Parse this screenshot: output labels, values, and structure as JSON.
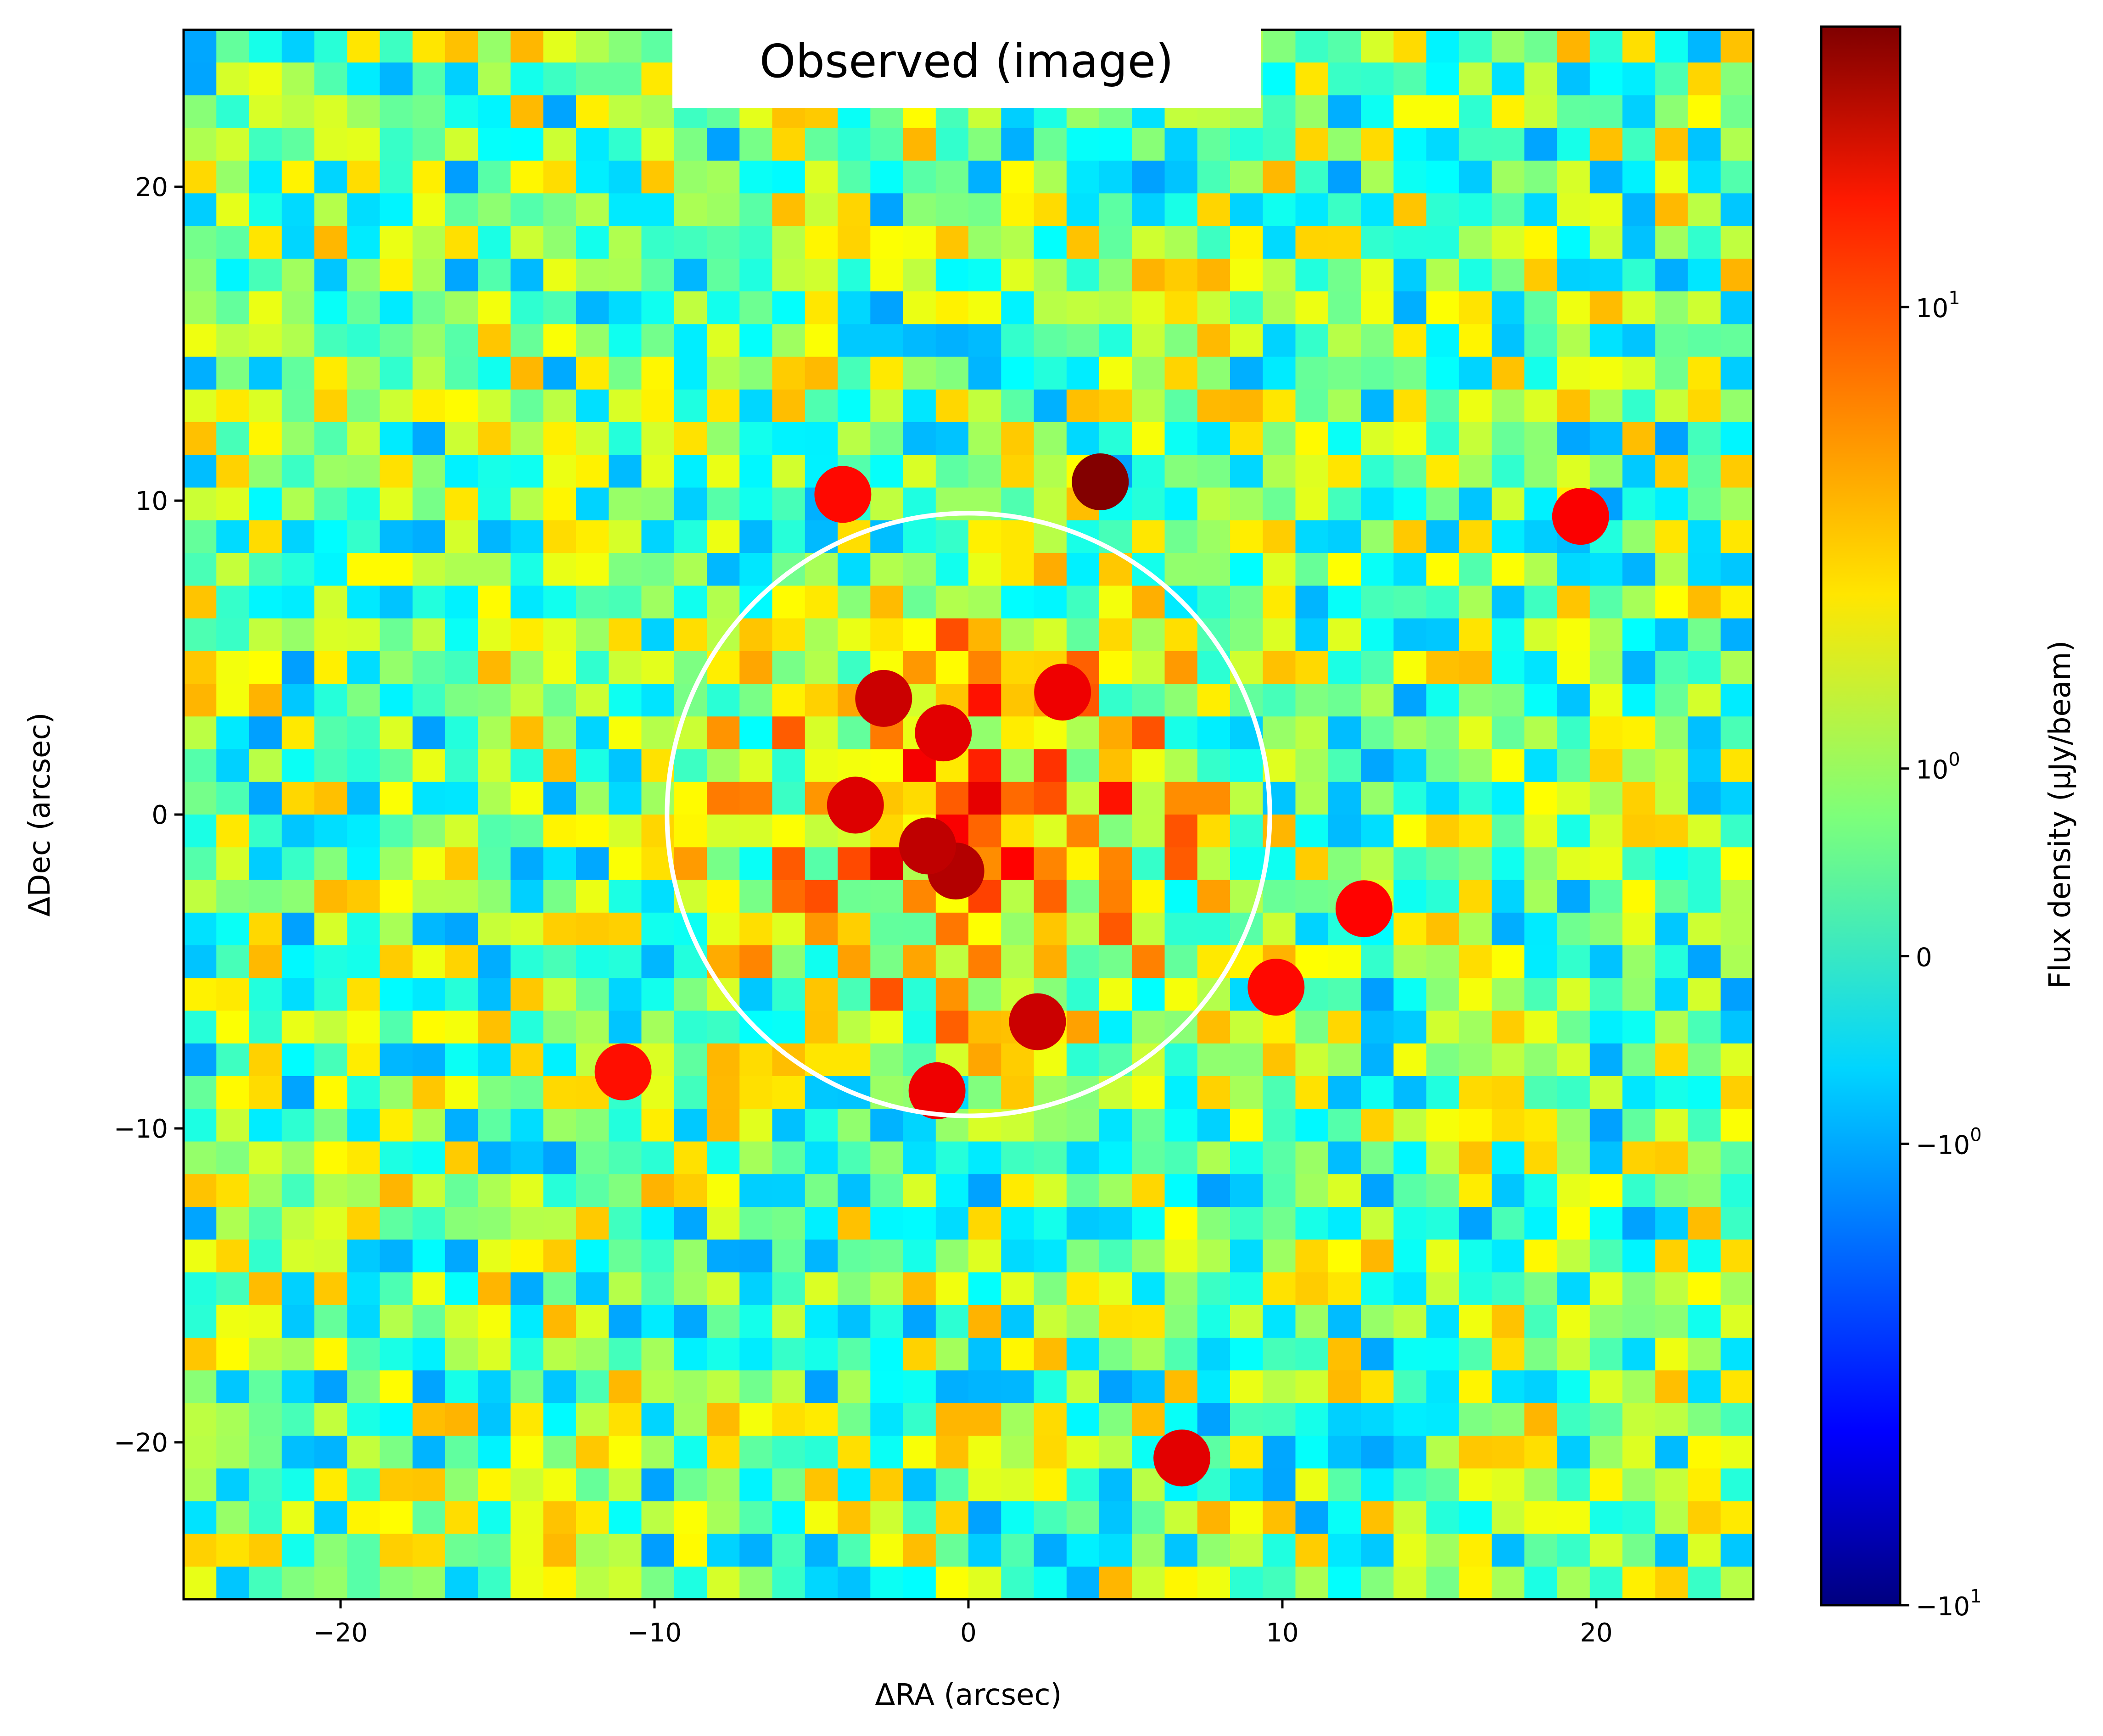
{
  "chart_data": {
    "type": "heatmap",
    "title": "Observed (image)",
    "xlabel": "ΔRA (arcsec)",
    "ylabel": "ΔDec (arcsec)",
    "xlim": [
      -25,
      25
    ],
    "ylim": [
      -25,
      25
    ],
    "xticks": [
      {
        "value": -20,
        "label": "−20"
      },
      {
        "value": -10,
        "label": "−10"
      },
      {
        "value": 0,
        "label": "0"
      },
      {
        "value": 10,
        "label": "10"
      },
      {
        "value": 20,
        "label": "20"
      }
    ],
    "yticks": [
      {
        "value": 20,
        "label": "20"
      },
      {
        "value": 10,
        "label": "10"
      },
      {
        "value": 0,
        "label": "0"
      },
      {
        "value": -10,
        "label": "−10"
      },
      {
        "value": -20,
        "label": "−20"
      }
    ],
    "colormap": "jet",
    "colorbar": {
      "label": "Flux density (μJy/beam)",
      "scale": "symlog",
      "range": [
        -10,
        30
      ],
      "ticks": [
        {
          "value": 10,
          "label": "10",
          "exp": "1"
        },
        {
          "value": 1,
          "label": "10",
          "exp": "0"
        },
        {
          "value": 0,
          "label": "0",
          "exp": ""
        },
        {
          "value": -1,
          "label": "−10",
          "exp": "0"
        },
        {
          "value": -10,
          "label": "−10",
          "exp": "1"
        }
      ]
    },
    "aperture_circle": {
      "center": [
        0,
        0
      ],
      "radius_arcsec": 9.6,
      "color": "#ffffff"
    },
    "bright_sources": [
      {
        "x": 4.2,
        "y": 10.6,
        "flux": 30
      },
      {
        "x": -0.4,
        "y": -1.8,
        "flux": 22
      },
      {
        "x": -1.3,
        "y": -1.0,
        "flux": 20
      },
      {
        "x": 2.2,
        "y": -6.6,
        "flux": 18
      },
      {
        "x": -2.7,
        "y": 3.7,
        "flux": 18
      },
      {
        "x": -3.6,
        "y": 0.3,
        "flux": 15
      },
      {
        "x": -0.8,
        "y": 2.6,
        "flux": 14
      },
      {
        "x": 3.0,
        "y": 3.9,
        "flux": 12
      },
      {
        "x": -1.0,
        "y": -8.8,
        "flux": 12
      },
      {
        "x": 6.8,
        "y": -20.5,
        "flux": 14
      },
      {
        "x": 19.5,
        "y": 9.5,
        "flux": 10
      },
      {
        "x": 12.6,
        "y": -3.0,
        "flux": 9
      },
      {
        "x": 9.8,
        "y": -5.5,
        "flux": 8
      },
      {
        "x": -11.0,
        "y": -8.2,
        "flux": 7
      },
      {
        "x": -4.0,
        "y": 10.2,
        "flux": 8
      }
    ]
  }
}
